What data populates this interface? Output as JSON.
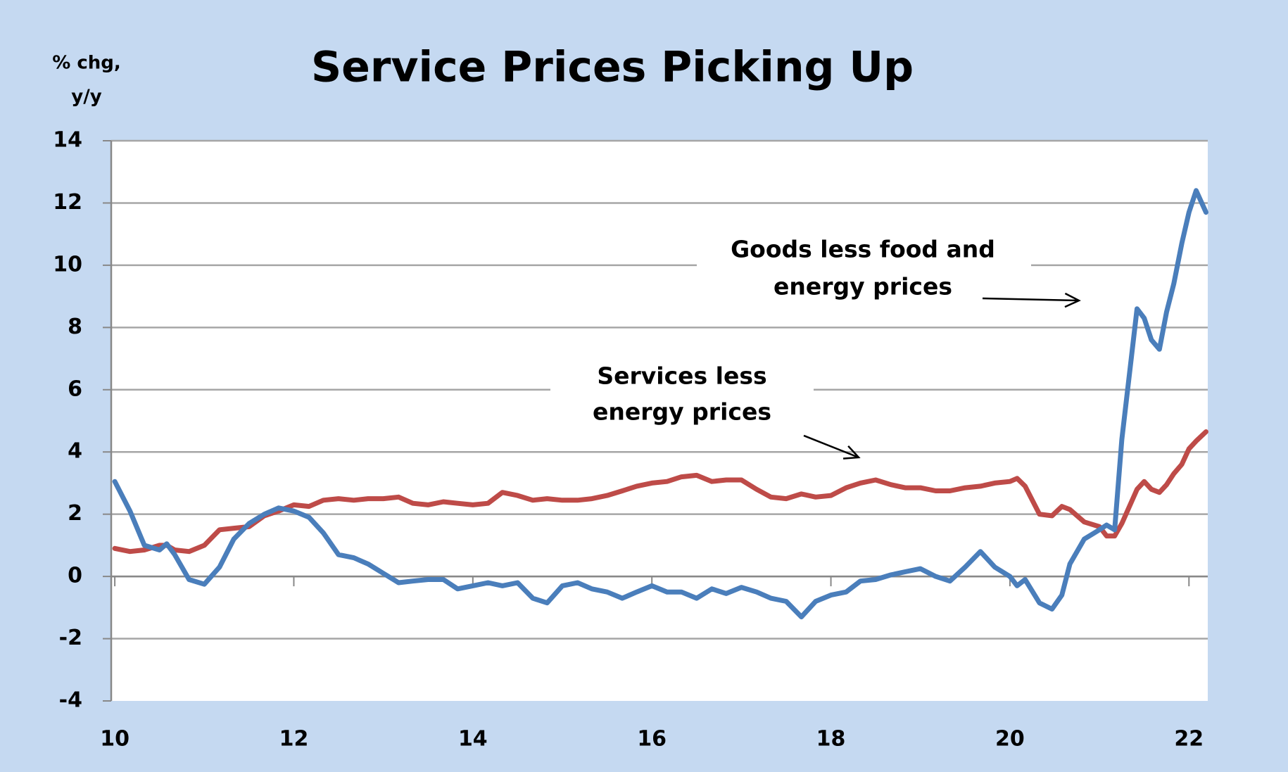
{
  "chart_data": {
    "type": "line",
    "title": "Service Prices Picking Up",
    "y_label": [
      "% chg,",
      "y/y"
    ],
    "annotations": [
      {
        "text": [
          "Goods less food and",
          "energy prices"
        ]
      },
      {
        "text": [
          "Services less",
          "energy prices"
        ]
      }
    ],
    "x": [
      10,
      10.17,
      10.33,
      10.5,
      10.58,
      10.67,
      10.83,
      11,
      11.17,
      11.33,
      11.5,
      11.67,
      11.83,
      12,
      12.17,
      12.33,
      12.5,
      12.67,
      12.83,
      13,
      13.17,
      13.33,
      13.5,
      13.67,
      13.83,
      14,
      14.17,
      14.33,
      14.5,
      14.67,
      14.83,
      15,
      15.17,
      15.33,
      15.5,
      15.67,
      15.83,
      16,
      16.17,
      16.33,
      16.5,
      16.67,
      16.83,
      17,
      17.17,
      17.33,
      17.5,
      17.67,
      17.83,
      18,
      18.17,
      18.33,
      18.5,
      18.67,
      18.83,
      19,
      19.17,
      19.33,
      19.5,
      19.67,
      19.83,
      20,
      20.08,
      20.17,
      20.33,
      20.47,
      20.58,
      20.67,
      20.83,
      21,
      21.08,
      21.17,
      21.25,
      21.42,
      21.5,
      21.58,
      21.67,
      21.75,
      21.83,
      21.92,
      22,
      22.08,
      22.19
    ],
    "series": [
      {
        "name": "Goods less food and energy prices",
        "color": "#4a7ebb",
        "values": [
          3.05,
          2.1,
          1.0,
          0.85,
          1.05,
          0.7,
          -0.1,
          -0.25,
          0.3,
          1.2,
          1.7,
          2.0,
          2.2,
          2.1,
          1.9,
          1.4,
          0.7,
          0.6,
          0.4,
          0.1,
          -0.2,
          -0.15,
          -0.1,
          -0.1,
          -0.4,
          -0.3,
          -0.2,
          -0.3,
          -0.2,
          -0.7,
          -0.85,
          -0.3,
          -0.2,
          -0.4,
          -0.5,
          -0.7,
          -0.5,
          -0.3,
          -0.5,
          -0.5,
          -0.7,
          -0.4,
          -0.55,
          -0.35,
          -0.5,
          -0.7,
          -0.8,
          -1.3,
          -0.8,
          -0.6,
          -0.5,
          -0.15,
          -0.1,
          0.05,
          0.15,
          0.25,
          0.0,
          -0.15,
          0.3,
          0.8,
          0.3,
          0.0,
          -0.3,
          -0.1,
          -0.85,
          -1.05,
          -0.6,
          0.4,
          1.2,
          1.5,
          1.65,
          1.5,
          4.4,
          8.6,
          8.3,
          7.6,
          7.3,
          8.5,
          9.4,
          10.7,
          11.7,
          12.4,
          11.7
        ]
      },
      {
        "name": "Services less energy prices",
        "color": "#be4b48",
        "values": [
          0.9,
          0.8,
          0.85,
          1.0,
          1.0,
          0.85,
          0.8,
          1.0,
          1.5,
          1.55,
          1.6,
          1.95,
          2.1,
          2.3,
          2.25,
          2.45,
          2.5,
          2.45,
          2.5,
          2.5,
          2.55,
          2.35,
          2.3,
          2.4,
          2.35,
          2.3,
          2.35,
          2.7,
          2.6,
          2.45,
          2.5,
          2.45,
          2.45,
          2.5,
          2.6,
          2.75,
          2.9,
          3.0,
          3.05,
          3.2,
          3.25,
          3.05,
          3.1,
          3.1,
          2.8,
          2.55,
          2.5,
          2.65,
          2.55,
          2.6,
          2.85,
          3.0,
          3.1,
          2.95,
          2.85,
          2.85,
          2.75,
          2.75,
          2.85,
          2.9,
          3.0,
          3.05,
          3.15,
          2.9,
          2.0,
          1.95,
          2.25,
          2.15,
          1.75,
          1.6,
          1.3,
          1.3,
          1.7,
          2.8,
          3.05,
          2.8,
          2.7,
          2.95,
          3.3,
          3.6,
          4.1,
          4.35,
          4.65
        ]
      }
    ],
    "xlim": [
      9.96,
      22.21
    ],
    "xticks": [
      10,
      12,
      14,
      16,
      18,
      20,
      22
    ],
    "ylim": [
      -4,
      14
    ],
    "yticks": [
      -4,
      -2,
      0,
      2,
      4,
      6,
      8,
      10,
      12,
      14
    ],
    "grid": true
  }
}
